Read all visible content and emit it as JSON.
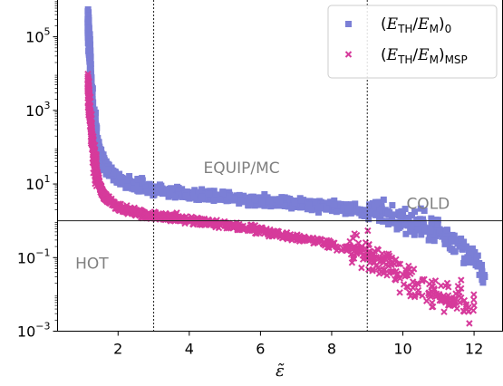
{
  "chart_data": {
    "type": "scatter",
    "title": "",
    "xlabel": "ε̃",
    "ylabel": "",
    "xlim": [
      0.3,
      12.8
    ],
    "ylim_log10": [
      -3,
      6
    ],
    "y_scale": "log",
    "x_ticks": [
      2,
      4,
      6,
      8,
      10,
      12
    ],
    "y_ticks": [
      {
        "value": 100000,
        "mantissa": "10",
        "exponent": "5"
      },
      {
        "value": 1000,
        "mantissa": "10",
        "exponent": "3"
      },
      {
        "value": 10,
        "mantissa": "10",
        "exponent": "1"
      },
      {
        "value": 0.1,
        "mantissa": "10",
        "exponent": "−1"
      },
      {
        "value": 0.001,
        "mantissa": "10",
        "exponent": "−3"
      }
    ],
    "reference_lines": {
      "horizontal_y": 1,
      "vertical_x": [
        3,
        9
      ]
    },
    "annotations": [
      {
        "text": "EQUIP/MC",
        "x": 4.4,
        "y": 20
      },
      {
        "text": "COLD",
        "x": 10.1,
        "y": 2.1
      },
      {
        "text": "HOT",
        "x": 0.8,
        "y": 0.05
      }
    ],
    "legend": {
      "placement": "top-right",
      "entries": [
        {
          "series": "E0",
          "base": "E",
          "sub": "TH",
          "den": "E",
          "den_sub": "M",
          "tail_sub": "0"
        },
        {
          "series": "MSP",
          "base": "E",
          "sub": "TH",
          "den": "E",
          "den_sub": "M",
          "tail_sub": "MSP"
        }
      ]
    },
    "series": [
      {
        "id": "E0",
        "marker": "square",
        "color": "#7b7fd6",
        "x": [
          1.15,
          1.2,
          1.25,
          1.3,
          1.4,
          1.5,
          1.6,
          1.8,
          2.0,
          2.2,
          2.5,
          2.8,
          3.0,
          3.3,
          3.6,
          4.0,
          4.4,
          4.8,
          5.2,
          5.6,
          6.0,
          6.4,
          6.8,
          7.2,
          7.6,
          8.0,
          8.4,
          8.8,
          9.2,
          9.6,
          10.0,
          10.4,
          10.8,
          11.2,
          11.6,
          12.0,
          12.3
        ],
        "y": [
          300000,
          50000,
          3000,
          600,
          150,
          60,
          35,
          20,
          14,
          11,
          9,
          8,
          7,
          6.5,
          6,
          5.5,
          5,
          4.6,
          4.2,
          3.8,
          3.5,
          3.2,
          3.0,
          2.8,
          2.6,
          2.4,
          2.2,
          2.0,
          1.8,
          1.5,
          1.2,
          0.9,
          0.6,
          0.4,
          0.2,
          0.08,
          0.03
        ]
      },
      {
        "id": "MSP",
        "marker": "x",
        "color": "#d63a9b",
        "x": [
          1.15,
          1.2,
          1.25,
          1.3,
          1.4,
          1.5,
          1.6,
          1.8,
          2.0,
          2.2,
          2.5,
          2.8,
          3.0,
          3.3,
          3.6,
          4.0,
          4.4,
          4.8,
          5.2,
          5.6,
          6.0,
          6.4,
          6.8,
          7.2,
          7.6,
          8.0,
          8.4,
          8.8,
          9.2,
          9.6,
          10.0,
          10.4,
          10.8,
          11.2,
          11.6,
          12.0
        ],
        "y": [
          5000,
          1200,
          300,
          80,
          20,
          8,
          5,
          3.2,
          2.4,
          2.0,
          1.7,
          1.5,
          1.4,
          1.3,
          1.2,
          1.05,
          0.95,
          0.85,
          0.75,
          0.65,
          0.55,
          0.45,
          0.38,
          0.32,
          0.27,
          0.22,
          0.18,
          0.15,
          0.1,
          0.06,
          0.035,
          0.02,
          0.012,
          0.008,
          0.006,
          0.005
        ]
      }
    ]
  }
}
